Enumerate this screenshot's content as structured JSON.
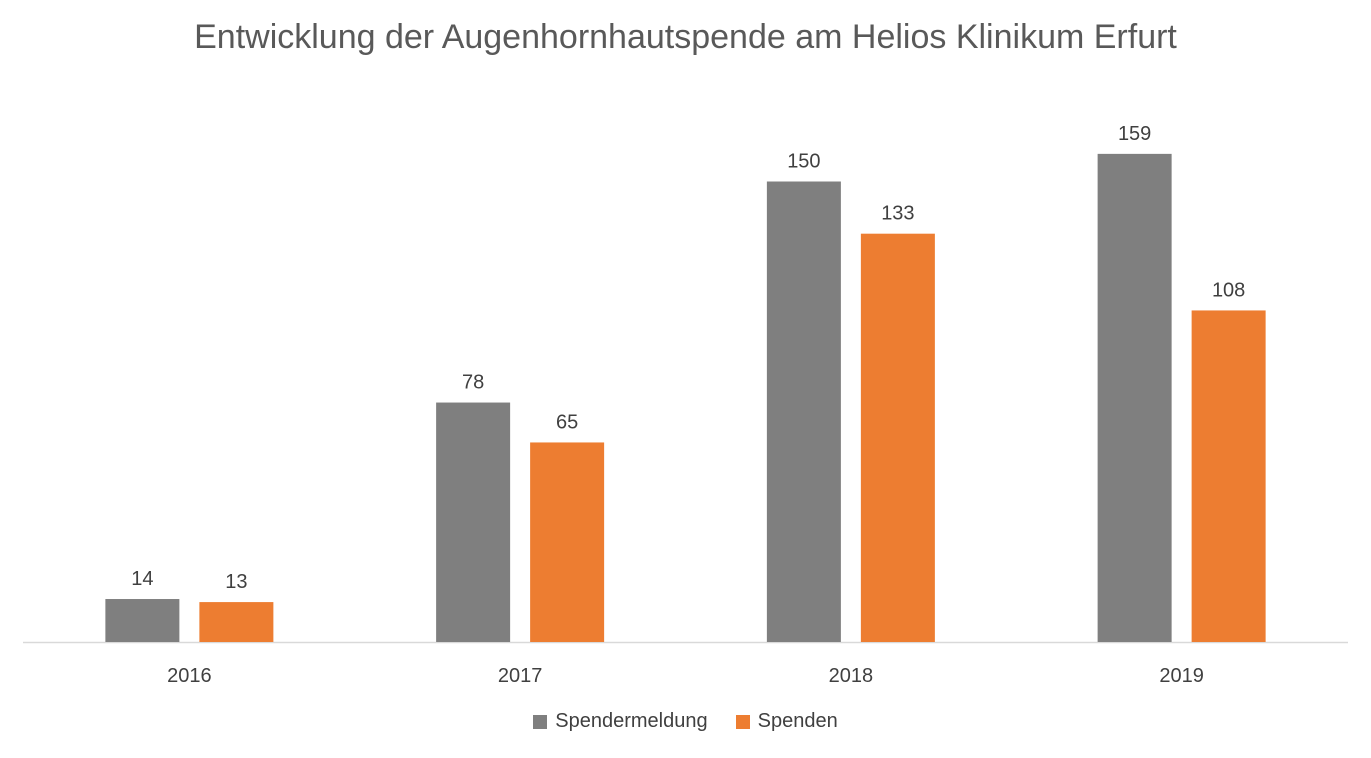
{
  "chart_data": {
    "type": "bar",
    "title": "Entwicklung der Augenhornhautspende am Helios Klinikum Erfurt",
    "xlabel": "",
    "ylabel": "",
    "categories": [
      "2016",
      "2017",
      "2018",
      "2019"
    ],
    "series": [
      {
        "name": "Spendermeldung",
        "values": [
          14,
          78,
          150,
          159
        ],
        "color": "#7f7f7f"
      },
      {
        "name": "Spenden",
        "values": [
          13,
          65,
          133,
          108
        ],
        "color": "#ed7d31"
      }
    ],
    "ylim": [
      0,
      160
    ],
    "grid": false,
    "data_labels": true,
    "legend_position": "bottom"
  },
  "legend": {
    "items": [
      {
        "label": "Spendermeldung",
        "color": "#7f7f7f"
      },
      {
        "label": "Spenden",
        "color": "#ed7d31"
      }
    ]
  }
}
